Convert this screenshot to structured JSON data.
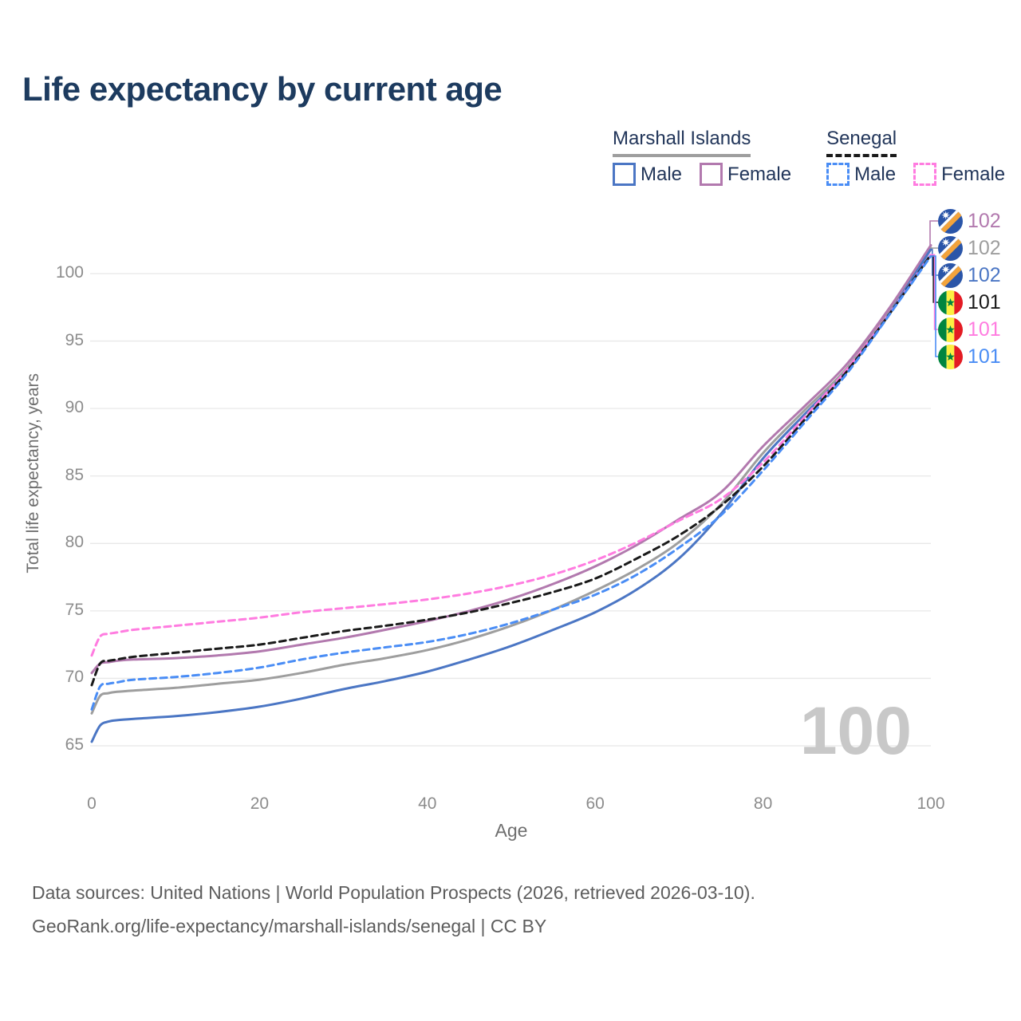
{
  "title": "Life expectancy by current age",
  "legend": {
    "marshall": {
      "label": "Marshall Islands",
      "male": "Male",
      "female": "Female"
    },
    "senegal": {
      "label": "Senegal",
      "male": "Male",
      "female": "Female"
    }
  },
  "axes": {
    "y_label": "Total life expectancy, years",
    "x_label": "Age",
    "y_ticks": [
      65,
      70,
      75,
      80,
      85,
      90,
      95,
      100
    ],
    "x_ticks": [
      0,
      20,
      40,
      60,
      80,
      100
    ]
  },
  "watermark": "100",
  "chart_data": {
    "type": "line",
    "title": "Life expectancy by current age",
    "xlabel": "Age",
    "ylabel": "Total life expectancy, years",
    "xlim": [
      0,
      100
    ],
    "ylim": [
      65,
      100
    ],
    "grid": "horizontal",
    "legend_position": "top-right",
    "x": [
      0,
      1,
      2,
      3,
      5,
      10,
      15,
      20,
      25,
      30,
      35,
      40,
      45,
      50,
      55,
      60,
      65,
      70,
      75,
      80,
      85,
      90,
      95,
      100
    ],
    "series": [
      {
        "id": "mi-female",
        "name": "Marshall Islands Female",
        "country": "Marshall Islands",
        "sex": "Female",
        "color": "#b279ae",
        "dash": false,
        "end_label": "102",
        "values": [
          70.4,
          71.1,
          71.2,
          71.3,
          71.4,
          71.5,
          71.7,
          72.0,
          72.5,
          73.0,
          73.6,
          74.25,
          75.0,
          75.9,
          77.0,
          78.3,
          79.9,
          81.8,
          83.8,
          87.2,
          90.2,
          93.3,
          97.4,
          102.1
        ]
      },
      {
        "id": "mi-total",
        "name": "Marshall Islands Total",
        "country": "Marshall Islands",
        "sex": "Both sexes",
        "color": "#9e9e9e",
        "dash": false,
        "end_label": "102",
        "values": [
          67.4,
          68.7,
          68.9,
          69.0,
          69.1,
          69.3,
          69.6,
          69.9,
          70.4,
          71.0,
          71.5,
          72.1,
          72.9,
          73.9,
          75.1,
          76.5,
          78.1,
          80.1,
          82.9,
          86.7,
          89.9,
          93.0,
          97.2,
          101.9
        ]
      },
      {
        "id": "mi-male",
        "name": "Marshall Islands Male",
        "country": "Marshall Islands",
        "sex": "Male",
        "color": "#4b76c4",
        "dash": false,
        "end_label": "102",
        "values": [
          65.3,
          66.5,
          66.8,
          66.9,
          67.0,
          67.2,
          67.5,
          67.9,
          68.5,
          69.2,
          69.8,
          70.5,
          71.4,
          72.4,
          73.6,
          74.9,
          76.6,
          78.9,
          82.2,
          86.3,
          89.6,
          92.8,
          97.0,
          101.8
        ]
      },
      {
        "id": "sn-total",
        "name": "Senegal Total",
        "country": "Senegal",
        "sex": "Both sexes",
        "color": "#1a1a1a",
        "dash": true,
        "end_label": "101",
        "values": [
          69.5,
          71.1,
          71.3,
          71.4,
          71.6,
          71.9,
          72.2,
          72.5,
          73.0,
          73.5,
          73.9,
          74.35,
          74.9,
          75.6,
          76.4,
          77.4,
          78.9,
          80.6,
          82.8,
          85.7,
          89.2,
          92.75,
          96.95,
          101.4
        ]
      },
      {
        "id": "sn-female",
        "name": "Senegal Female",
        "country": "Senegal",
        "sex": "Female",
        "color": "#ff7ce0",
        "dash": true,
        "end_label": "101",
        "values": [
          71.7,
          73.1,
          73.3,
          73.4,
          73.6,
          73.9,
          74.2,
          74.5,
          74.9,
          75.2,
          75.5,
          75.85,
          76.3,
          76.9,
          77.7,
          78.75,
          80.1,
          81.7,
          83.3,
          86.0,
          89.4,
          92.9,
          97.0,
          101.4
        ]
      },
      {
        "id": "sn-male",
        "name": "Senegal Male",
        "country": "Senegal",
        "sex": "Male",
        "color": "#4a8df5",
        "dash": true,
        "end_label": "101",
        "values": [
          67.7,
          69.4,
          69.6,
          69.7,
          69.9,
          70.1,
          70.4,
          70.8,
          71.4,
          71.9,
          72.3,
          72.7,
          73.3,
          74.1,
          75.1,
          76.2,
          77.7,
          79.7,
          82.1,
          85.4,
          89.0,
          92.6,
          96.9,
          101.3
        ]
      }
    ],
    "watermark": "100"
  },
  "right_labels": [
    {
      "flag": "marshall-islands",
      "value": "102",
      "color": "#b279ae"
    },
    {
      "flag": "marshall-islands",
      "value": "102",
      "color": "#9e9e9e"
    },
    {
      "flag": "marshall-islands",
      "value": "102",
      "color": "#4b76c4"
    },
    {
      "flag": "senegal",
      "value": "101",
      "color": "#1a1a1a"
    },
    {
      "flag": "senegal",
      "value": "101",
      "color": "#ff7ce0"
    },
    {
      "flag": "senegal",
      "value": "101",
      "color": "#4a8df5"
    }
  ],
  "footer": {
    "line1": "Data sources: United Nations | World Population Prospects (2026, retrieved 2026-03-10).",
    "line2": "GeoRank.org/life-expectancy/marshall-islands/senegal | CC BY"
  },
  "colors": {
    "title_text": "#1d3b5f",
    "legend_text": "#22365a",
    "axis_text": "#8c8c8c",
    "axis_title_text": "#6f6f6f",
    "gridline": "#e8e8e8",
    "watermark": "#c8c8c8",
    "footer_text": "#5d5d5d"
  }
}
